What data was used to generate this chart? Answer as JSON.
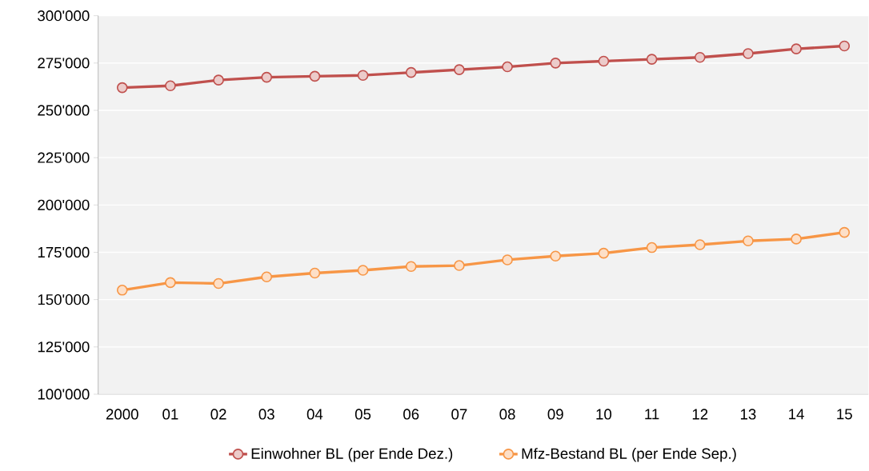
{
  "chart_data": {
    "type": "line",
    "categories": [
      "2000",
      "01",
      "02",
      "03",
      "04",
      "05",
      "06",
      "07",
      "08",
      "09",
      "10",
      "11",
      "12",
      "13",
      "14",
      "15"
    ],
    "series": [
      {
        "name": "Einwohner BL (per Ende Dez.)",
        "color": "#c0504d",
        "values": [
          262000,
          263000,
          266000,
          267500,
          268000,
          268500,
          270000,
          271500,
          273000,
          275000,
          276000,
          277000,
          278000,
          280000,
          282500,
          284000
        ]
      },
      {
        "name": "Mfz-Bestand BL (per Ende Sep.)",
        "color": "#f79646",
        "values": [
          155000,
          159000,
          158500,
          162000,
          164000,
          165500,
          167500,
          168000,
          171000,
          173000,
          174500,
          177500,
          179000,
          181000,
          182000,
          185500
        ]
      }
    ],
    "ylim": [
      100000,
      300000
    ],
    "yticks": [
      {
        "value": 100000,
        "label": "100'000"
      },
      {
        "value": 125000,
        "label": "125'000"
      },
      {
        "value": 150000,
        "label": "150'000"
      },
      {
        "value": 175000,
        "label": "175'000"
      },
      {
        "value": 200000,
        "label": "200'000"
      },
      {
        "value": 225000,
        "label": "225'000"
      },
      {
        "value": 250000,
        "label": "250'000"
      },
      {
        "value": 275000,
        "label": "275'000"
      },
      {
        "value": 300000,
        "label": "300'000"
      }
    ],
    "grid": "y",
    "legend": "bottom",
    "marker": "circle",
    "line_style": "solid"
  }
}
